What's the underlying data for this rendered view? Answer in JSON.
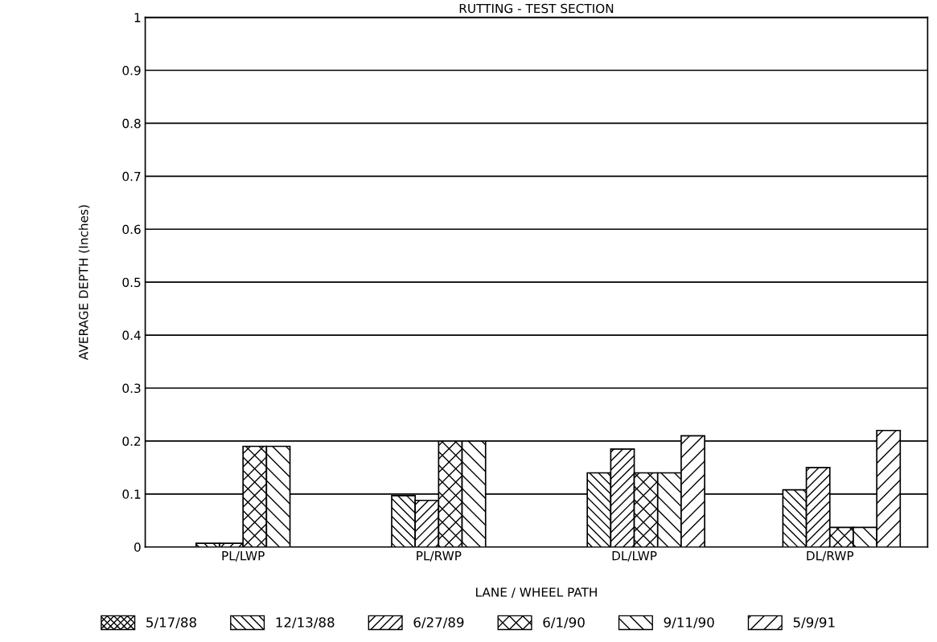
{
  "chart_data": {
    "type": "bar",
    "title": "RUTTING - TEST SECTION",
    "xlabel": "LANE / WHEEL PATH",
    "ylabel": "AVERAGE DEPTH (Inches)",
    "categories": [
      "PL/LWP",
      "PL/RWP",
      "DL/LWP",
      "DL/RWP"
    ],
    "series": [
      {
        "name": "5/17/88",
        "color": "#000000",
        "values": [
          null,
          null,
          null,
          null
        ]
      },
      {
        "name": "12/13/88",
        "color": "#000000",
        "values": [
          0.007,
          0.097,
          0.14,
          0.108
        ]
      },
      {
        "name": "6/27/89",
        "color": "#000000",
        "values": [
          0.007,
          0.088,
          0.185,
          0.15
        ]
      },
      {
        "name": "6/1/90",
        "color": "#000000",
        "values": [
          0.19,
          0.2,
          0.14,
          0.037
        ]
      },
      {
        "name": "9/11/90",
        "color": "#000000",
        "values": [
          0.19,
          0.2,
          0.14,
          0.037
        ]
      },
      {
        "name": "5/9/91",
        "color": "#000000",
        "values": [
          null,
          null,
          0.21,
          0.22
        ]
      }
    ],
    "ylim": [
      0,
      1
    ],
    "yticks": [
      0,
      0.1,
      0.2,
      0.3,
      0.4,
      0.5,
      0.6,
      0.7,
      0.8,
      0.9,
      1
    ],
    "grid": "y",
    "legend": "bottom"
  }
}
